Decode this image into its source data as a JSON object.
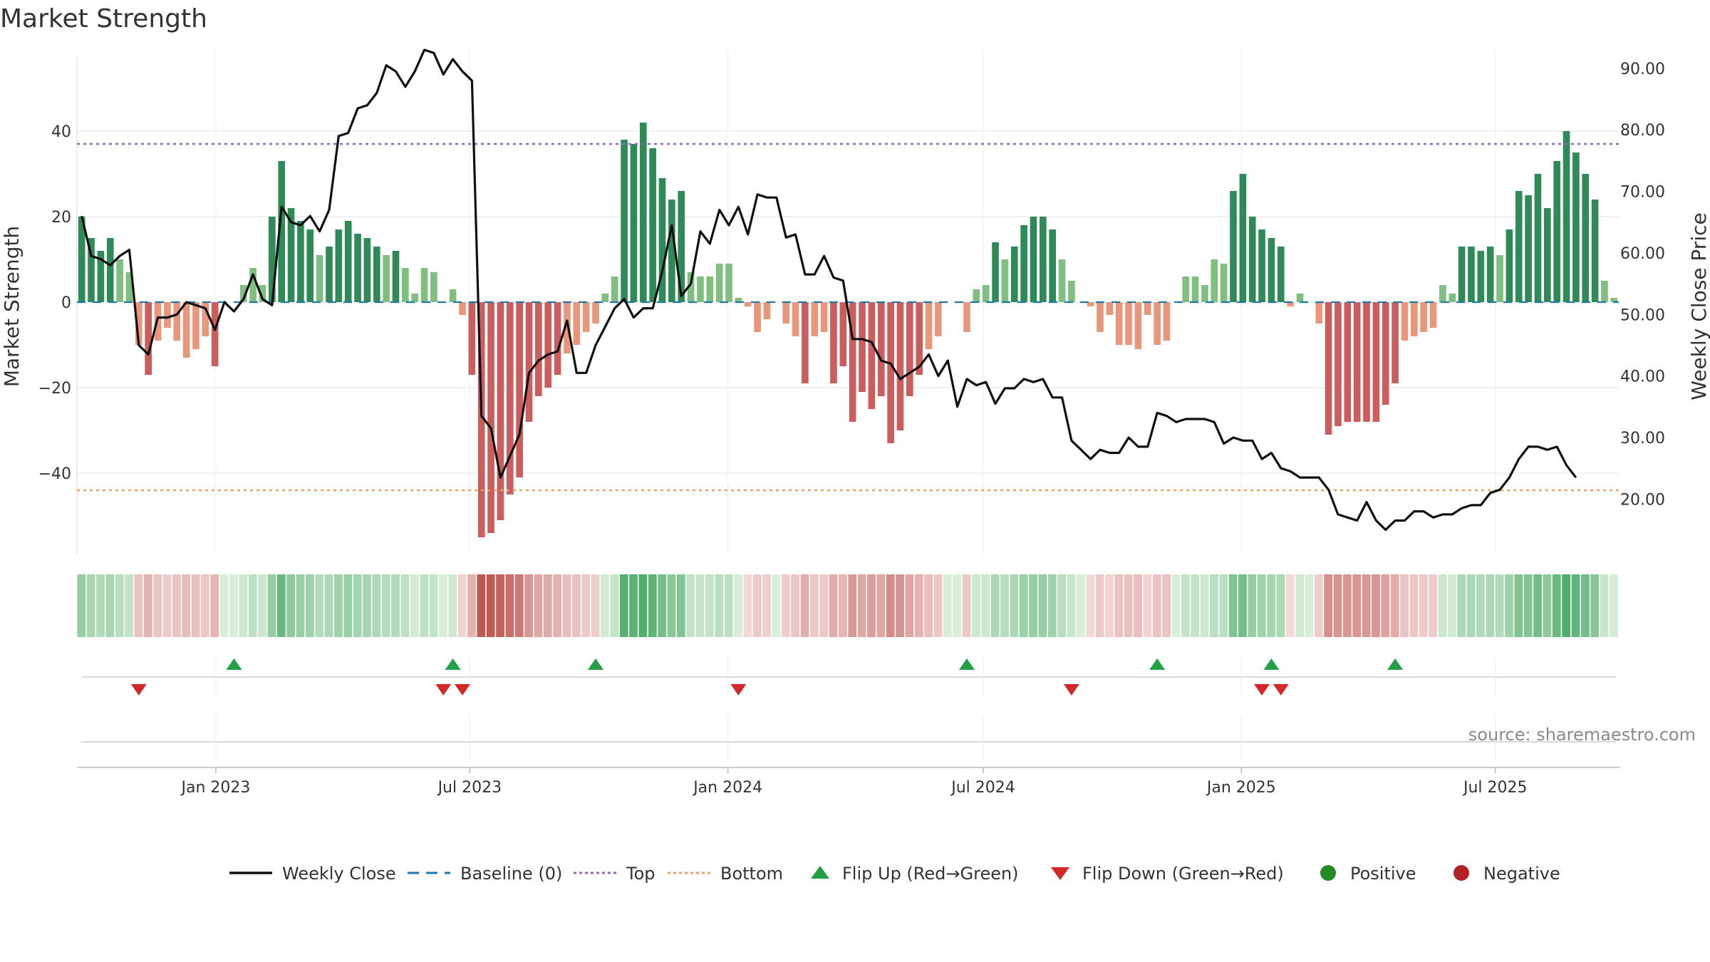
{
  "chart_data": {
    "type": "bar",
    "title": "Market Strength",
    "source": "source: sharemaestro.com",
    "y_left": {
      "label": "Market Strength",
      "range": [
        -59,
        59
      ],
      "ticks": [
        40,
        20,
        0,
        -20,
        -40
      ],
      "tick_labels": [
        "40",
        "20",
        "0",
        "−20",
        "−40"
      ]
    },
    "y_right": {
      "label": "Weekly Close Price",
      "range": [
        11,
        93
      ],
      "ticks": [
        90,
        80,
        70,
        60,
        50,
        40,
        30,
        20
      ],
      "tick_labels": [
        "90.00",
        "80.00",
        "70.00",
        "60.00",
        "50.00",
        "40.00",
        "30.00",
        "20.00"
      ]
    },
    "x_axis": {
      "start_date": "2022-09-24",
      "end_date": "2025-09-27",
      "ticks": [
        {
          "date": "2023-01-01",
          "label": "Jan 2023"
        },
        {
          "date": "2023-07-01",
          "label": "Jul 2023"
        },
        {
          "date": "2024-01-01",
          "label": "Jan 2024"
        },
        {
          "date": "2024-07-01",
          "label": "Jul 2024"
        },
        {
          "date": "2025-01-01",
          "label": "Jan 2025"
        },
        {
          "date": "2025-07-01",
          "label": "Jul 2025"
        }
      ]
    },
    "reference_lines": {
      "top": 37,
      "bottom": -44,
      "baseline": 0
    },
    "strength": [
      20,
      15,
      12,
      15,
      10,
      7,
      -10,
      -17,
      -9,
      -6,
      -9,
      -13,
      -11,
      -8,
      -15,
      0,
      0,
      4,
      8,
      4,
      20,
      33,
      22,
      19,
      17,
      11,
      13,
      17,
      19,
      16,
      15,
      13,
      11,
      12,
      8,
      2,
      8,
      7,
      0,
      3,
      -3,
      -17,
      -55,
      -54,
      -51,
      -45,
      -41,
      -28,
      -22,
      -20,
      -17,
      -12,
      -10,
      -7,
      -5,
      2,
      6,
      38,
      37,
      42,
      36,
      29,
      24,
      26,
      7,
      6,
      6,
      9,
      9,
      1,
      -1,
      -7,
      -4,
      0,
      -5,
      -8,
      -19,
      -8,
      -7,
      -19,
      -15,
      -28,
      -21,
      -25,
      -22,
      -33,
      -30,
      -22,
      -17,
      -11,
      -8,
      0,
      0,
      -7,
      3,
      4,
      14,
      10,
      13,
      18,
      20,
      20,
      17,
      10,
      5,
      0,
      -1,
      -7,
      -3,
      -10,
      -10,
      -11,
      -3,
      -10,
      -9,
      0,
      6,
      6,
      4,
      10,
      9,
      26,
      30,
      20,
      17,
      15,
      13,
      -1,
      2,
      0,
      -5,
      -31,
      -29,
      -28,
      -28,
      -28,
      -28,
      -24,
      -19,
      -9,
      -8,
      -7,
      -6,
      4,
      2,
      13,
      13,
      12,
      13,
      11,
      17,
      26,
      25,
      30,
      22,
      33,
      40,
      35,
      30,
      24,
      5,
      1
    ],
    "price": [
      66.0,
      59.5,
      59.0,
      58.0,
      59.5,
      60.5,
      45.0,
      43.5,
      49.5,
      49.5,
      50.0,
      52.0,
      51.5,
      51.0,
      47.5,
      52.0,
      50.5,
      52.5,
      56.5,
      52.5,
      51.5,
      67.5,
      65.0,
      64.5,
      66.0,
      63.5,
      67.0,
      79.0,
      79.5,
      83.5,
      84.0,
      86.0,
      90.5,
      89.5,
      87.0,
      89.5,
      93.0,
      92.5,
      89.0,
      91.5,
      89.5,
      88.0,
      33.5,
      31.5,
      23.5,
      27.0,
      30.5,
      40.5,
      42.5,
      43.5,
      44.0,
      49.0,
      40.5,
      40.5,
      45.0,
      48.0,
      51.0,
      52.5,
      49.5,
      51.0,
      51.0,
      57.0,
      64.5,
      53.0,
      55.0,
      63.5,
      61.5,
      67.0,
      64.5,
      67.5,
      63.0,
      69.5,
      69.0,
      69.0,
      62.5,
      63.0,
      56.5,
      56.5,
      59.5,
      56.0,
      55.5,
      46.0,
      46.0,
      45.5,
      42.5,
      42.0,
      39.5,
      40.5,
      41.5,
      43.5,
      40.0,
      42.5,
      35.0,
      39.5,
      38.5,
      39.0,
      35.5,
      38.0,
      38.0,
      39.5,
      39.0,
      39.5,
      36.5,
      36.5,
      29.5,
      28.0,
      26.5,
      28.0,
      27.5,
      27.5,
      30.0,
      28.5,
      28.5,
      34.0,
      33.5,
      32.5,
      33.0,
      33.0,
      33.0,
      32.5,
      29.0,
      30.0,
      29.5,
      29.5,
      26.5,
      27.5,
      25.0,
      24.5,
      23.5,
      23.5,
      23.5,
      21.5,
      17.5,
      17.0,
      16.5,
      19.5,
      16.5,
      15.0,
      16.5,
      16.5,
      18.0,
      18.0,
      17.0,
      17.5,
      17.5,
      18.5,
      19.0,
      19.0,
      21.0,
      21.5,
      23.5,
      26.5,
      28.5,
      28.5,
      28.0,
      28.5,
      25.5,
      23.5
    ],
    "flip_up_weeks": [
      16,
      39,
      54,
      93,
      113,
      125,
      138
    ],
    "flip_down_weeks": [
      6,
      38,
      40,
      69,
      104,
      124,
      126
    ],
    "legend": [
      {
        "key": "weekly_close",
        "label": "Weekly Close",
        "color": "#111111"
      },
      {
        "key": "baseline",
        "label": "Baseline (0)",
        "color": "#1f77b4"
      },
      {
        "key": "top",
        "label": "Top",
        "color": "#9467bd"
      },
      {
        "key": "bottom",
        "label": "Bottom",
        "color": "#f0a060"
      },
      {
        "key": "flip_up",
        "label": "Flip Up (Red→Green)",
        "color": "#22a045"
      },
      {
        "key": "flip_down",
        "label": "Flip Down (Green→Red)",
        "color": "#d62728"
      },
      {
        "key": "positive",
        "label": "Positive",
        "color": "#228b22"
      },
      {
        "key": "negative",
        "label": "Negative",
        "color": "#b22222"
      }
    ],
    "colors": {
      "pos_dark": "#2e8b57",
      "pos_light": "#7fbf7f",
      "neg_dark": "#cd5c5c",
      "neg_light": "#e9967a",
      "grid": "#e6e6e6",
      "axis": "#cccccc"
    }
  }
}
